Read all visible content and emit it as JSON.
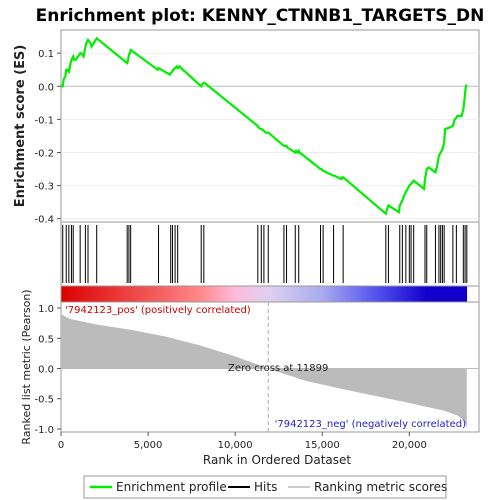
{
  "chart_data": {
    "type": "line",
    "title": "Enrichment plot: KENNY_CTNNB1_TARGETS_DN",
    "es_panel": {
      "ylabel": "Enrichment score (ES)",
      "ylim": [
        -0.41,
        0.17
      ],
      "yticks": [
        0.1,
        0.0,
        -0.1,
        -0.2,
        -0.3,
        -0.4
      ],
      "ytick_labels": [
        "0.1",
        "0.0",
        "-0.1",
        "-0.2",
        "-0.3",
        "-0.4"
      ],
      "series": [
        {
          "name": "Enrichment profile",
          "color": "#00ee00",
          "x": [
            0,
            100,
            150,
            250,
            300,
            400,
            450,
            550,
            600,
            700,
            750,
            850,
            1100,
            1150,
            1300,
            1400,
            1450,
            1550,
            1700,
            1750,
            2000,
            2050,
            3800,
            3850,
            3900,
            3950,
            4000,
            5550,
            5600,
            6250,
            6300,
            6400,
            6450,
            6550,
            6650,
            6700,
            6800,
            8050,
            8100,
            8200,
            8250,
            11300,
            11350,
            11500,
            11550,
            11650,
            11750,
            11900,
            12800,
            12950,
            13000,
            13450,
            13500,
            13600,
            13650,
            13700,
            14900,
            14950,
            15050,
            15650,
            15700,
            16100,
            16150,
            16200,
            18650,
            18700,
            18800,
            19400,
            19450,
            19600,
            19700,
            19800,
            19900,
            20000,
            20100,
            20250,
            20850,
            20900,
            21000,
            21100,
            21500,
            21600,
            21700,
            21800,
            21900,
            22000,
            22050,
            22500,
            22600,
            22700,
            22750,
            23000,
            23100,
            23150,
            23200,
            23250,
            23300
          ],
          "y": [
            0.0,
            0.0,
            0.02,
            0.03,
            0.05,
            0.05,
            0.04,
            0.07,
            0.08,
            0.09,
            0.08,
            0.08,
            0.1,
            0.1,
            0.09,
            0.12,
            0.13,
            0.14,
            0.13,
            0.12,
            0.14,
            0.145,
            0.07,
            0.08,
            0.095,
            0.1,
            0.11,
            0.05,
            0.055,
            0.035,
            0.04,
            0.045,
            0.05,
            0.055,
            0.06,
            0.055,
            0.06,
            0.0,
            0.005,
            0.01,
            0.01,
            -0.12,
            -0.125,
            -0.13,
            -0.13,
            -0.135,
            -0.14,
            -0.14,
            -0.18,
            -0.18,
            -0.185,
            -0.2,
            -0.195,
            -0.2,
            -0.195,
            -0.2,
            -0.25,
            -0.25,
            -0.255,
            -0.27,
            -0.27,
            -0.28,
            -0.275,
            -0.275,
            -0.385,
            -0.375,
            -0.36,
            -0.38,
            -0.36,
            -0.345,
            -0.33,
            -0.32,
            -0.31,
            -0.3,
            -0.295,
            -0.285,
            -0.31,
            -0.28,
            -0.25,
            -0.245,
            -0.26,
            -0.24,
            -0.21,
            -0.2,
            -0.19,
            -0.17,
            -0.13,
            -0.12,
            -0.1,
            -0.095,
            -0.09,
            -0.09,
            -0.07,
            -0.05,
            -0.02,
            0.0,
            0.005
          ]
        }
      ]
    },
    "hits_panel": {
      "legend_label": "Hits",
      "color": "#000000",
      "positions": [
        100,
        300,
        450,
        600,
        700,
        1100,
        1400,
        1550,
        2050,
        3800,
        3900,
        4000,
        5600,
        6300,
        6400,
        6550,
        6700,
        8050,
        8200,
        11300,
        11500,
        11650,
        11900,
        12800,
        12950,
        13450,
        13650,
        14900,
        15050,
        15650,
        16200,
        18650,
        18800,
        19450,
        19600,
        19800,
        20000,
        20100,
        20250,
        20900,
        21000,
        21500,
        21700,
        21800,
        21900,
        22000,
        22500,
        22700,
        23100,
        23200,
        23300
      ]
    },
    "heatmap_bar": {
      "stops": [
        "#dd0000",
        "#ee4444",
        "#ff8888",
        "#ffbbdd",
        "#ddd0f0",
        "#aaaaee",
        "#5555ee",
        "#1100cc"
      ],
      "stop_positions": [
        0,
        4000,
        8000,
        10000,
        12000,
        15000,
        18000,
        21000,
        23300
      ]
    },
    "metric_panel": {
      "ylabel": "Ranked list metric (Pearson)",
      "ylim": [
        -1.05,
        1.1
      ],
      "yticks": [
        1.0,
        0.5,
        0.0,
        -0.5,
        -1.0
      ],
      "ytick_labels": [
        "1.0",
        "0.5",
        "0.0",
        "-0.5",
        "-1.0"
      ],
      "fill_color": "#bbbbbb",
      "x": [
        0,
        500,
        2000,
        4000,
        6000,
        8000,
        10000,
        11899,
        14000,
        16000,
        18000,
        20000,
        22000,
        22800,
        23100,
        23300
      ],
      "y": [
        0.9,
        0.82,
        0.73,
        0.64,
        0.53,
        0.38,
        0.2,
        0.0,
        -0.2,
        -0.33,
        -0.45,
        -0.57,
        -0.7,
        -0.78,
        -0.85,
        -0.98
      ],
      "pos_label": "'7942123_pos' (positively correlated)",
      "neg_label": "'7942123_neg' (negatively correlated)",
      "zero_cross_label": "Zero cross at 11899",
      "zero_cross": 11899
    },
    "x_axis": {
      "label": "Rank in Ordered Dataset",
      "xlim": [
        0,
        24000
      ],
      "ticks": [
        0,
        5000,
        10000,
        15000,
        20000
      ],
      "tick_labels": [
        "0",
        "5,000",
        "10,000",
        "15,000",
        "20,000"
      ]
    },
    "legend": {
      "placement": "bottom",
      "entries": [
        {
          "label": "Enrichment profile",
          "color": "#00ee00"
        },
        {
          "label": "Hits",
          "color": "#000000"
        },
        {
          "label": "Ranking metric scores",
          "color": "#cccccc"
        }
      ]
    }
  }
}
